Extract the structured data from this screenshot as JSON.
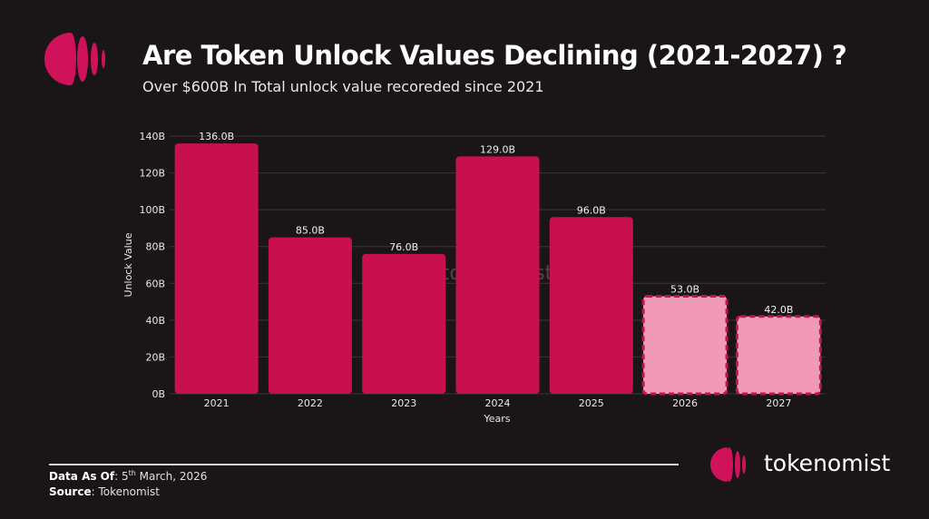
{
  "header": {
    "title": "Are Token Unlock Values Declining (2021-2027) ?",
    "subtitle": "Over $600B In Total unlock value recoreded since 2021"
  },
  "chart_data": {
    "type": "bar",
    "categories": [
      "2021",
      "2022",
      "2023",
      "2024",
      "2025",
      "2026",
      "2027"
    ],
    "values": [
      136.0,
      85.0,
      76.0,
      129.0,
      96.0,
      53.0,
      42.0
    ],
    "data_labels": [
      "136.0B",
      "85.0B",
      "76.0B",
      "129.0B",
      "96.0B",
      "53.0B",
      "42.0B"
    ],
    "projected": [
      false,
      false,
      false,
      false,
      false,
      true,
      true
    ],
    "xlabel": "Years",
    "ylabel": "Unlock Value",
    "ylim": [
      0,
      140
    ],
    "yticks": [
      0,
      20,
      40,
      60,
      80,
      100,
      120,
      140
    ],
    "ytick_labels": [
      "0B",
      "20B",
      "40B",
      "60B",
      "80B",
      "100B",
      "120B",
      "140B"
    ],
    "grid": true,
    "watermark": "tokenomist",
    "colors": {
      "actual": "#c8104f",
      "projected": "#f09ab8",
      "projected_border": "#c8104f",
      "background": "#1a1617"
    }
  },
  "footer": {
    "data_as_of_label": "Data As Of",
    "data_as_of_day": "5",
    "data_as_of_suffix": "th",
    "data_as_of_rest": " March, 2026",
    "source_label": "Source",
    "source_value": "Tokenomist",
    "brand": "tokenomist"
  }
}
